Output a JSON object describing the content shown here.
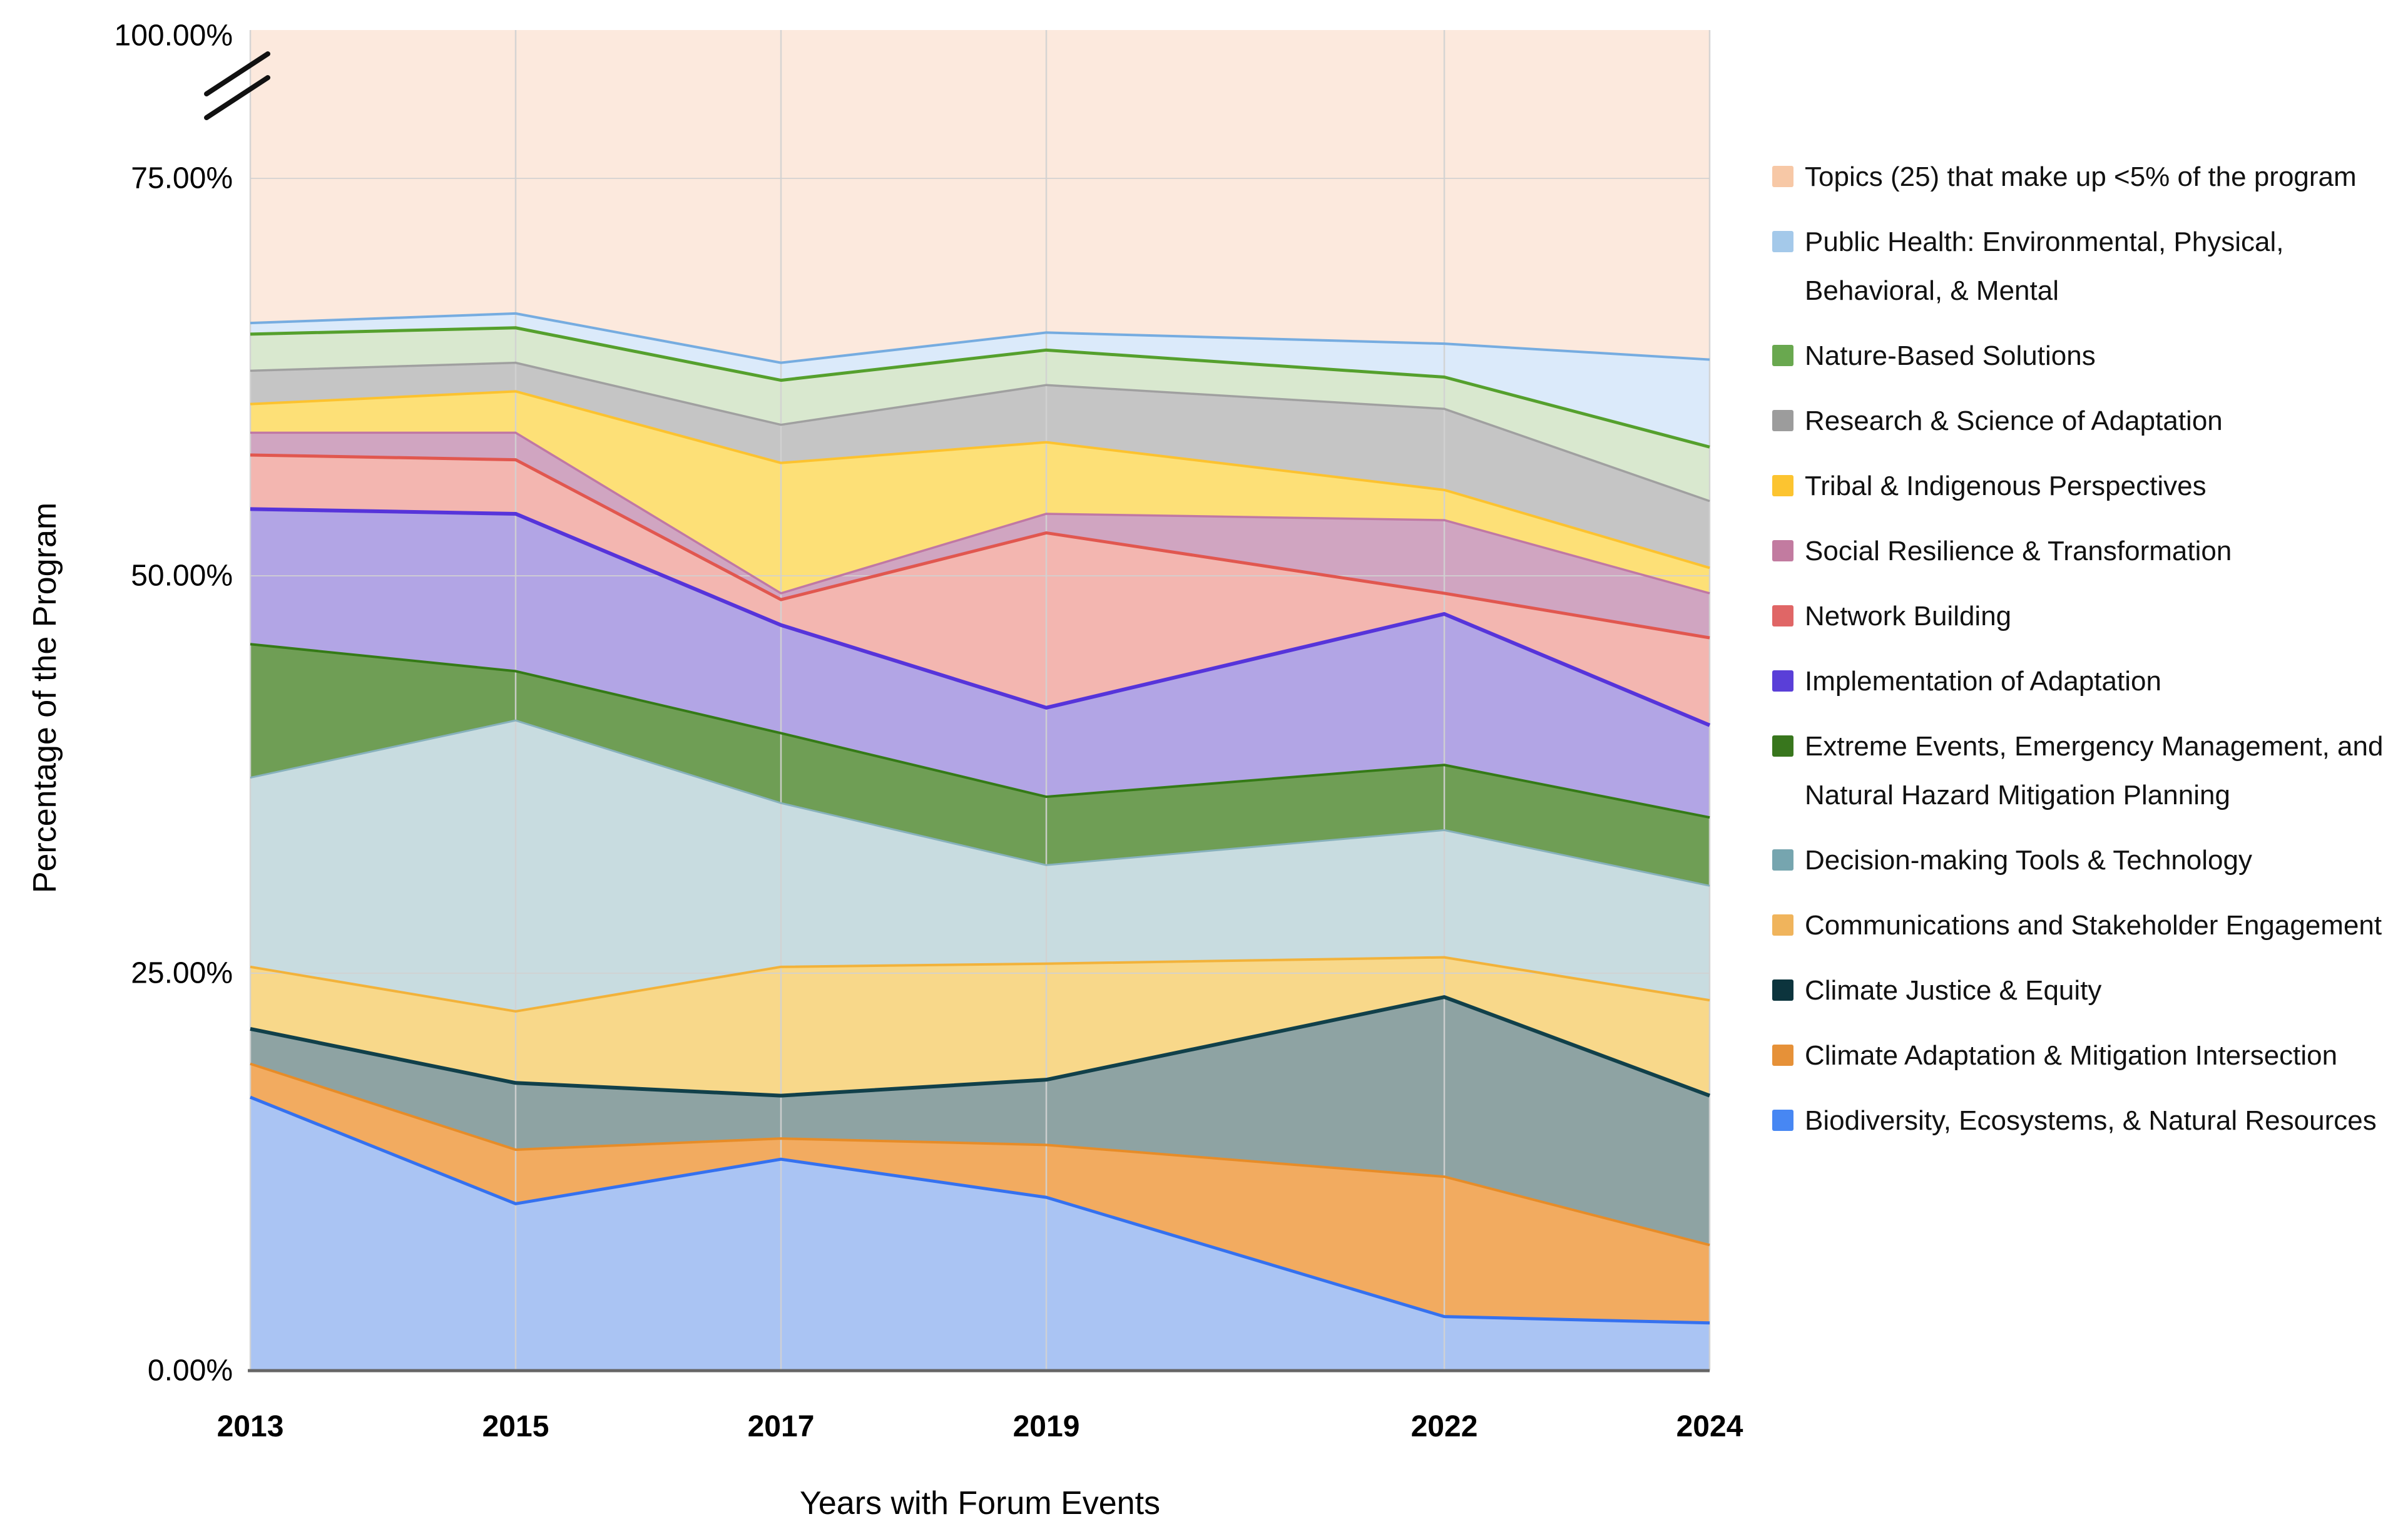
{
  "chart_data": {
    "type": "area",
    "stacked": true,
    "title": "",
    "x_axis_label": "Years with Forum Events",
    "y_axis_label": "Percentage of the Program",
    "x": [
      2013,
      2015,
      2017,
      2019,
      2022,
      2024
    ],
    "x_tick_labels": [
      "2013",
      "2015",
      "2017",
      "2019",
      "2022",
      "2024"
    ],
    "y_tick_labels": [
      "0.00%",
      "25.00%",
      "50.00%",
      "75.00%",
      "100.00%"
    ],
    "y_tick_values": [
      0,
      25,
      50,
      75,
      100
    ],
    "ylim": [
      0,
      100
    ],
    "y_axis_break": {
      "between": [
        75,
        100
      ],
      "style": "double-slash"
    },
    "grid": true,
    "legend_position": "right",
    "units": "percent",
    "series": [
      {
        "name": "Biodiversity, Ecosystems, & Natural Resources",
        "values": [
          17.2,
          10.5,
          13.3,
          10.9,
          3.4,
          3.0
        ],
        "fill": "#aac4f3",
        "stroke": "#3571ef",
        "stroke_width": 5
      },
      {
        "name": "Climate Adaptation & Mitigation Intersection",
        "values": [
          2.1,
          3.4,
          1.3,
          3.3,
          8.8,
          4.9
        ],
        "fill": "#f2ab60",
        "stroke": "#e78c28",
        "stroke_width": 4
      },
      {
        "name": "Climate Justice & Equity",
        "values": [
          2.2,
          4.2,
          2.7,
          4.1,
          11.3,
          9.4
        ],
        "fill": "#8ea3a3",
        "stroke": "#11404a",
        "stroke_width": 6
      },
      {
        "name": "Communications and Stakeholder Engagement",
        "values": [
          3.9,
          4.5,
          8.1,
          7.3,
          2.5,
          6.0
        ],
        "fill": "#f8d88a",
        "stroke": "#f2b23a",
        "stroke_width": 4
      },
      {
        "name": "Decision-making Tools & Technology",
        "values": [
          11.9,
          18.3,
          10.3,
          6.2,
          8.0,
          7.2
        ],
        "fill": "#c8dce0",
        "stroke": "#87b1bc",
        "stroke_width": 3
      },
      {
        "name": "Extreme Events, Emergency Management, and Natural Hazard Mitigation Planning",
        "values": [
          8.4,
          3.1,
          4.4,
          4.3,
          4.1,
          4.3
        ],
        "fill": "#6f9e55",
        "stroke": "#357a17",
        "stroke_width": 4
      },
      {
        "name": "Implementation of Adaptation",
        "values": [
          8.5,
          9.9,
          6.8,
          5.6,
          9.5,
          5.8
        ],
        "fill": "#b2a5e5",
        "stroke": "#5634da",
        "stroke_width": 6
      },
      {
        "name": "Network Building",
        "values": [
          3.4,
          3.4,
          1.6,
          11.0,
          1.3,
          5.5
        ],
        "fill": "#f3b6b0",
        "stroke": "#e1574f",
        "stroke_width": 5
      },
      {
        "name": "Social Resilience & Transformation",
        "values": [
          1.4,
          1.7,
          0.4,
          1.2,
          4.6,
          2.8
        ],
        "fill": "#d0a5c1",
        "stroke": "#c078a4",
        "stroke_width": 3.5
      },
      {
        "name": "Tribal & Indigenous Perspectives",
        "values": [
          1.8,
          2.6,
          8.2,
          4.5,
          1.9,
          1.6
        ],
        "fill": "#fde077",
        "stroke": "#fcc22f",
        "stroke_width": 4
      },
      {
        "name": "Research & Science of Adaptation",
        "values": [
          2.1,
          1.8,
          2.4,
          3.6,
          5.1,
          4.2
        ],
        "fill": "#c5c5c5",
        "stroke": "#a0a0a0",
        "stroke_width": 3.5
      },
      {
        "name": "Nature-Based Solutions",
        "values": [
          2.3,
          2.2,
          2.8,
          2.2,
          2.0,
          3.4
        ],
        "fill": "#d9e8cf",
        "stroke": "#55a02d",
        "stroke_width": 5
      },
      {
        "name": "Public Health: Environmental, Physical, Behavioral, & Mental",
        "values": [
          0.7,
          0.9,
          1.1,
          1.1,
          2.1,
          5.5
        ],
        "fill": "#dbeafa",
        "stroke": "#76ace0",
        "stroke_width": 4
      },
      {
        "name": "Topics (25) that make up <5% of the program",
        "values": [
          34.1,
          33.5,
          36.6,
          34.7,
          35.4,
          36.4
        ],
        "fill": "#fce9dd",
        "stroke": "#fce9dd",
        "stroke_width": 0
      }
    ]
  },
  "legend": {
    "items": [
      {
        "label": "Topics (25) that make up <5% of the program",
        "color": "#f7c8a6"
      },
      {
        "label": "Public Health: Environmental, Physical, Behavioral, & Mental",
        "color": "#a4c9ea"
      },
      {
        "label": "Nature-Based Solutions",
        "color": "#69a84f"
      },
      {
        "label": "Research & Science of Adaptation",
        "color": "#9c9c9c"
      },
      {
        "label": "Tribal & Indigenous Perspectives",
        "color": "#fcc430"
      },
      {
        "label": "Social Resilience & Transformation",
        "color": "#c27ba0"
      },
      {
        "label": "Network Building",
        "color": "#e06666"
      },
      {
        "label": "Implementation of Adaptation",
        "color": "#5a3fd8"
      },
      {
        "label": "Extreme Events, Emergency Management, and Natural Hazard Mitigation Planning",
        "color": "#38761d"
      },
      {
        "label": "Decision-making Tools & Technology",
        "color": "#76a5af"
      },
      {
        "label": "Communications and Stakeholder Engagement",
        "color": "#f0b45c"
      },
      {
        "label": "Climate Justice & Equity",
        "color": "#0c343d"
      },
      {
        "label": "Climate Adaptation & Mitigation Intersection",
        "color": "#e69138"
      },
      {
        "label": "Biodiversity, Ecosystems, & Natural Resources",
        "color": "#4787f3"
      }
    ]
  },
  "colors": {
    "grid": "#d2d2d2",
    "axis": "#666666",
    "break_mark": "#111111"
  }
}
